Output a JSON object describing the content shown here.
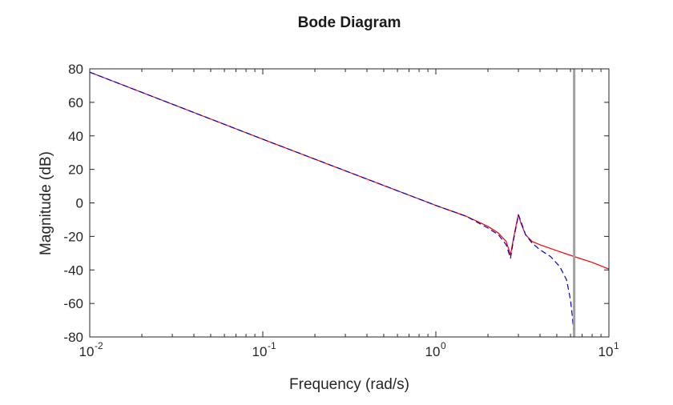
{
  "chart_data": {
    "type": "line",
    "title": "Bode Diagram",
    "xlabel": "Frequency (rad/s)",
    "ylabel": "Magnitude (dB)",
    "xscale": "log",
    "xlim": [
      0.01,
      10
    ],
    "ylim": [
      -80,
      80
    ],
    "grid": false,
    "x_ticks": [
      {
        "base": "10",
        "exp": "-2",
        "value": 0.01
      },
      {
        "base": "10",
        "exp": "-1",
        "value": 0.1
      },
      {
        "base": "10",
        "exp": "0",
        "value": 1
      },
      {
        "base": "10",
        "exp": "1",
        "value": 10
      }
    ],
    "y_ticks": [
      {
        "label": "80",
        "value": 80
      },
      {
        "label": "60",
        "value": 60
      },
      {
        "label": "40",
        "value": 40
      },
      {
        "label": "20",
        "value": 20
      },
      {
        "label": "0",
        "value": 0
      },
      {
        "label": "-20",
        "value": -20
      },
      {
        "label": "-40",
        "value": -40
      },
      {
        "label": "-60",
        "value": -60
      },
      {
        "label": "-80",
        "value": -80
      }
    ],
    "vertical_marker": {
      "x": 6.3,
      "color": "#a0a0a0"
    },
    "series": [
      {
        "color": "#ff0000",
        "style": "solid",
        "x": [
          0.01,
          0.1,
          1,
          1.5,
          2,
          2.3,
          2.55,
          2.7,
          2.8,
          2.9,
          3.0,
          3.1,
          3.3,
          3.6,
          4.0,
          5.0,
          6.3,
          8.0,
          10
        ],
        "y": [
          78,
          38,
          -1.5,
          -8,
          -14,
          -18,
          -23,
          -31,
          -22,
          -14,
          -7,
          -12,
          -19,
          -23,
          -25,
          -28.5,
          -32,
          -35.5,
          -39.5
        ]
      },
      {
        "color": "#0000cc",
        "style": "dashed",
        "x": [
          0.01,
          0.1,
          1,
          1.5,
          2,
          2.3,
          2.55,
          2.7,
          2.8,
          2.9,
          3.0,
          3.1,
          3.3,
          3.6,
          4.0,
          4.6,
          5.2,
          5.7,
          6.0,
          6.15,
          6.25,
          6.3
        ],
        "y": [
          78,
          38,
          -1.5,
          -8,
          -15,
          -19,
          -25,
          -33,
          -23,
          -15,
          -7,
          -11,
          -19,
          -24,
          -28,
          -32,
          -38,
          -46,
          -58,
          -68,
          -76,
          -80
        ]
      }
    ]
  }
}
